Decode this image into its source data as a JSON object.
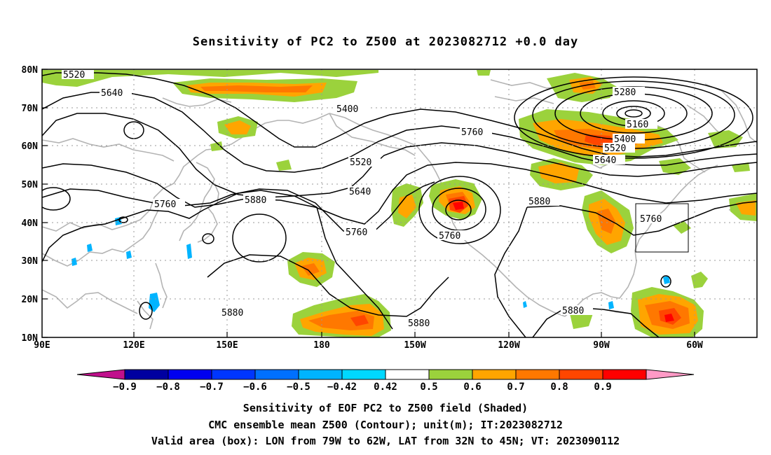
{
  "title": "Sensitivity of PC2 to Z500 at 2023082712 +0.0 day",
  "axes": {
    "y_ticks": [
      "80N",
      "70N",
      "60N",
      "50N",
      "40N",
      "30N",
      "20N",
      "10N"
    ],
    "x_ticks": [
      "90E",
      "120E",
      "150E",
      "180",
      "150W",
      "120W",
      "90W",
      "60W"
    ]
  },
  "contour_labels": {
    "c5520_a": "5520",
    "c5640_a": "5640",
    "c5400_a": "5400",
    "c5760_a": "5760",
    "c5520_b": "5520",
    "c5280": "5280",
    "c5160": "5160",
    "c5400_b": "5400",
    "c5520_c": "5520",
    "c5640_b": "5640",
    "c5640_c": "5640",
    "c5760_b": "5760",
    "c5880_a": "5880",
    "c5880_b": "5880",
    "c5760_c": "5760",
    "c5760_d": "5760",
    "c5760_e": "5760",
    "c5880_c": "5880",
    "c5880_d": "5880",
    "c5880_e": "5880"
  },
  "colorbar": {
    "labels": [
      "−0.9",
      "−0.8",
      "−0.7",
      "−0.6",
      "−0.5",
      "−0.42",
      "0.42",
      "0.5",
      "0.6",
      "0.7",
      "0.8",
      "0.9"
    ],
    "colors": [
      "#0000a0",
      "#0000f0",
      "#0036ff",
      "#0070ff",
      "#00b4ff",
      "#00d8ff",
      "#ffffff",
      "#9bd23c",
      "#ffa500",
      "#ff7800",
      "#ff4600",
      "#ff0000"
    ],
    "under_color": "#c0108c",
    "over_color": "#ff9ac6"
  },
  "captions": {
    "line1": "Sensitivity of EOF PC2 to Z500 field (Shaded)",
    "line2": "CMC ensemble mean Z500 (Contour); unit(m); IT:2023082712",
    "line3": "Valid area (box): LON from 79W to 62W, LAT from 32N to 45N; VT: 2023090112"
  }
}
